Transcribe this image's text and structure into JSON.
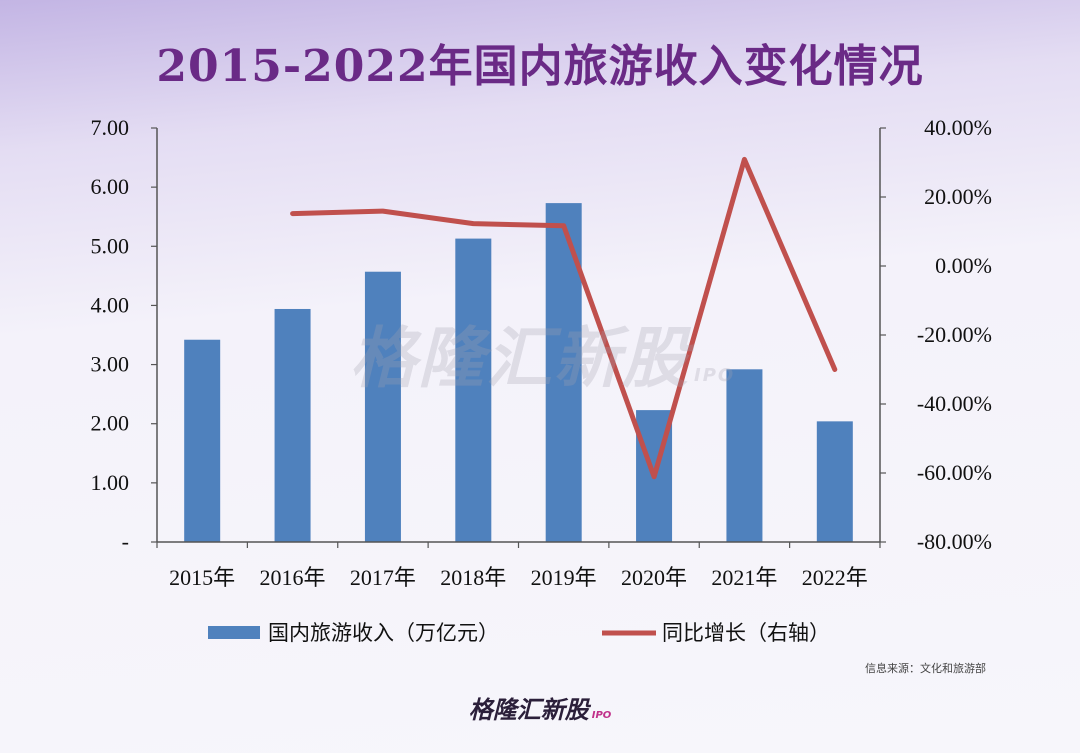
{
  "title": "2015-2022年国内旅游收入变化情况",
  "watermark": {
    "text": "格隆汇新股",
    "ipo": "IPO"
  },
  "source": "信息来源：文化和旅游部",
  "brand": {
    "text": "格隆汇新股",
    "ipo": "IPO"
  },
  "colors": {
    "bar": "#4f81bd",
    "line": "#c0504d",
    "title": "#6a2a86"
  },
  "chart_data": {
    "type": "bar",
    "categories": [
      "2015年",
      "2016年",
      "2017年",
      "2018年",
      "2019年",
      "2020年",
      "2021年",
      "2022年"
    ],
    "series": [
      {
        "name": "国内旅游收入（万亿元）",
        "type": "bar",
        "axis": "left",
        "values": [
          3.42,
          3.94,
          4.57,
          5.13,
          5.73,
          2.23,
          2.92,
          2.04
        ]
      },
      {
        "name": "同比增长（右轴）",
        "type": "line",
        "axis": "right",
        "values": [
          null,
          15.19,
          15.9,
          12.3,
          11.65,
          -61.1,
          30.9,
          -30.0
        ]
      }
    ],
    "left_axis": {
      "ylim": [
        0,
        7
      ],
      "ticks": [
        "-",
        "1.00",
        "2.00",
        "3.00",
        "4.00",
        "5.00",
        "6.00",
        "7.00"
      ]
    },
    "right_axis": {
      "ylim": [
        -80,
        40
      ],
      "ticks": [
        "-80.00%",
        "-60.00%",
        "-40.00%",
        "-20.00%",
        "0.00%",
        "20.00%",
        "40.00%"
      ]
    },
    "legend_position": "bottom"
  }
}
